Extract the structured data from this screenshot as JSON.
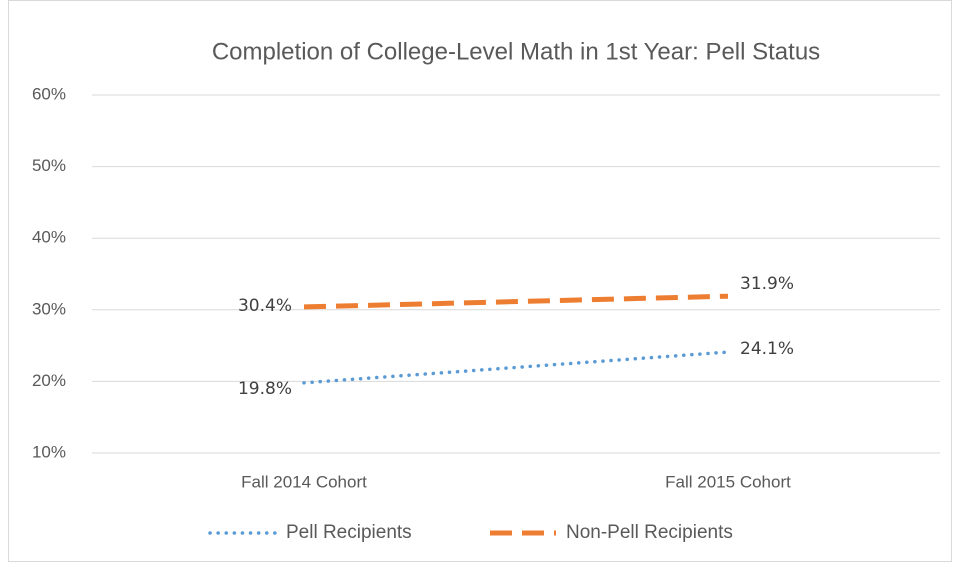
{
  "chart_data": {
    "type": "line",
    "title": "Completion of College-Level Math in 1st Year: Pell Status",
    "categories": [
      "Fall 2014 Cohort",
      "Fall 2015 Cohort"
    ],
    "series": [
      {
        "name": "Pell Recipients",
        "color": "#5b9bd5",
        "values": [
          19.8,
          24.1
        ],
        "value_labels": [
          "19.8%",
          "24.1%"
        ]
      },
      {
        "name": "Non-Pell Recipients",
        "color": "#ed7d31",
        "values": [
          30.4,
          31.9
        ],
        "value_labels": [
          "30.4%",
          "31.9%"
        ]
      }
    ],
    "ylim": [
      10,
      60
    ],
    "yticks": [
      {
        "value": 10,
        "label": "10%"
      },
      {
        "value": 20,
        "label": "20%"
      },
      {
        "value": 30,
        "label": "30%"
      },
      {
        "value": 40,
        "label": "40%"
      },
      {
        "value": 50,
        "label": "50%"
      },
      {
        "value": 60,
        "label": "60%"
      }
    ],
    "grid": true,
    "legend": "bottom"
  }
}
